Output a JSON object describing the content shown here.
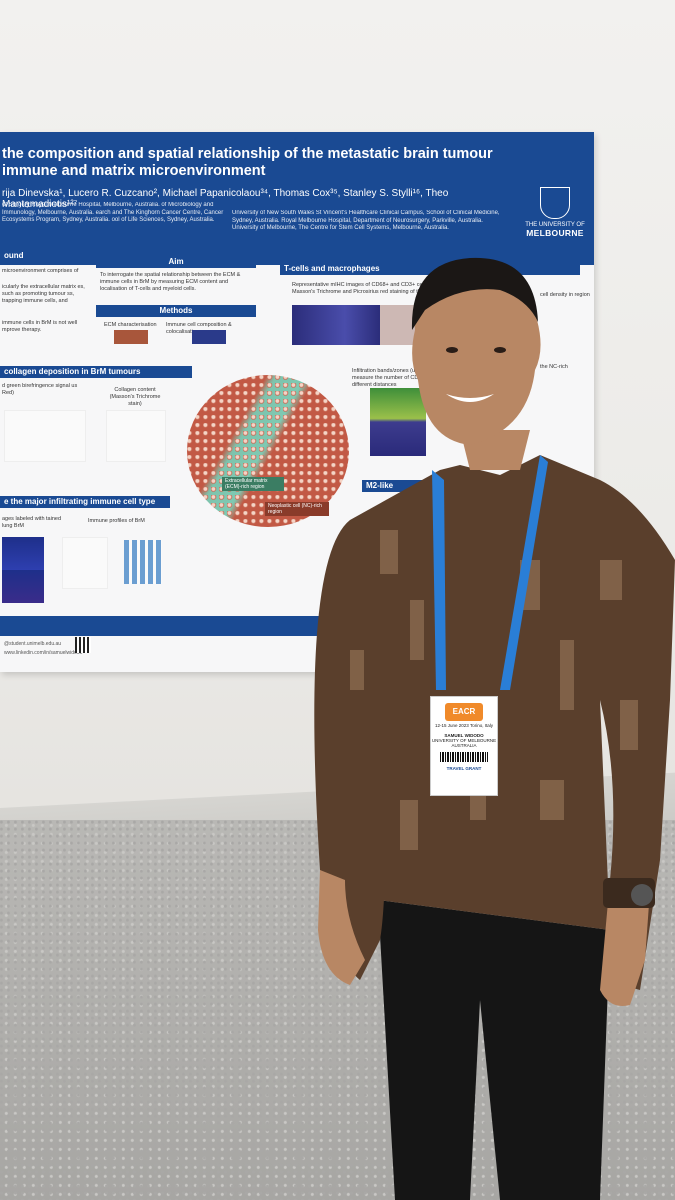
{
  "poster": {
    "title": "the composition and spatial relationship of the metastatic brain tumour immune and matrix microenvironment",
    "authors": "rija Dinevska¹, Lucero R. Cuzcano², Michael Papanicolaou³⁴, Thomas Cox³⁵, Stanley S. Stylli¹⁶, Theo Mantamadiotis¹²⁷",
    "affiliations_left": "of Surgery Royal Melbourne Hospital, Melbourne, Australia. of Microbiology and Immunology, Melbourne, Australia. earch and The Kinghorn Cancer Centre, Cancer Ecosystems Program, Sydney, Australia. ool of Life Sciences, Sydney, Australia.",
    "affiliations_right": "University of New South Wales St Vincent's Healthcare Clinical Campus, School of Clinical Medicine, Sydney, Australia. Royal Melbourne Hospital, Department of Neurosurgery, Parkville, Australia. University of Melbourne, The Centre for Stem Cell Systems, Melbourne, Australia.",
    "logo": {
      "line1": "THE UNIVERSITY OF",
      "line2": "MELBOURNE"
    },
    "sections": {
      "background": "ound",
      "aim": "Aim",
      "methods": "Methods",
      "tcells": "T-cells and macrophages",
      "collagen": "collagen deposition in BrM tumours",
      "immune": "e the major infiltrating immune cell type",
      "m2": "M2-like"
    },
    "texts": {
      "bg1": "microenvironment comprises of",
      "bg2": "icularly the extracellular matrix es, such as promoting tumour ss, trapping immune cells, and",
      "bg3": "immune cells in BrM is not well mprove therapy.",
      "aim": "To interrogate the spatial relationship between the ECM & immune cells in BrM by measuring ECM content and localisation of T-cells and myeloid cells.",
      "ecm": "ECM characterisation",
      "immune_comp": "Immune cell composition & colocalisation",
      "tcells_desc": "Representative mIHC images of CD68+ and CD3+ cells loca Masson's Trichrome and Picrosirius red staining of the",
      "birefringence": "d green birefringence signal us Red)",
      "collagen_content": "Collagen content (Masson's Trichrome stain)",
      "infiltration": "Infiltration bands/zones (upper pa measure the number of CD68+ an different distances",
      "labeled": "ages labeled with tained lung BrM",
      "profiles": "Immune profiles of BrM",
      "ecm_region": "Extracellular matrix (ECM)-rich region",
      "nc_region": "Neoplastic cell (NC)-rich region",
      "density": "cell density in region",
      "nc_rich": "the NC-rich",
      "email": "@student.unimelb.edu.au",
      "linkedin": "www.linkedin.com/in/samuelwidodo"
    }
  },
  "badge": {
    "event": "EACR 2023",
    "dates": "12-15 June 2023 Torino, Italy",
    "name": "SAMUEL WIDODO",
    "org": "UNIVERSITY OF MELBOURNE",
    "country": "AUSTRALIA",
    "grant": "TRAVEL GRANT"
  },
  "colors": {
    "poster_blue": "#1a4a93",
    "shirt": "#5a3f2c",
    "lanyard": "#2a7ed6"
  }
}
